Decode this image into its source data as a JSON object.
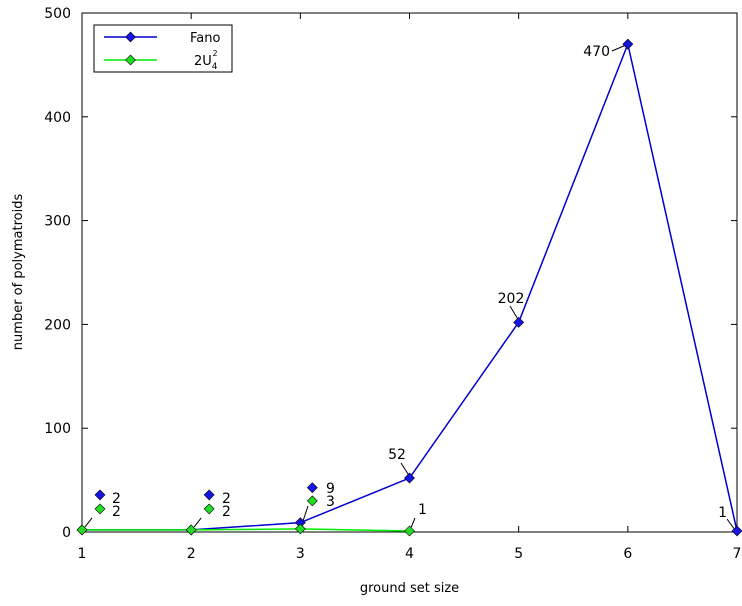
{
  "chart_data": {
    "type": "line",
    "title": "",
    "xlabel": "ground set size",
    "ylabel": "number of polymatroids",
    "xlim": [
      1,
      7
    ],
    "ylim": [
      0,
      500
    ],
    "x_ticks": [
      "1",
      "2",
      "3",
      "4",
      "5",
      "6",
      "7"
    ],
    "y_ticks": [
      "0",
      "100",
      "200",
      "300",
      "400",
      "500"
    ],
    "legend_position": "top-left",
    "series": [
      {
        "name": "Fano",
        "color": "#0000cc",
        "marker_color": "#1515e6",
        "x": [
          1,
          2,
          3,
          4,
          5,
          6,
          7
        ],
        "values": [
          2,
          2,
          9,
          52,
          202,
          470,
          1
        ],
        "labels": [
          "2",
          "2",
          "9",
          "52",
          "202",
          "470",
          "1"
        ]
      },
      {
        "name": "2U",
        "name_sup": "2",
        "name_sub": "4",
        "color": "#00ee00",
        "marker_color": "#22dd22",
        "x": [
          1,
          2,
          3,
          4
        ],
        "values": [
          2,
          2,
          3,
          1
        ],
        "labels": [
          "2",
          "2",
          "3",
          "1"
        ]
      }
    ]
  }
}
